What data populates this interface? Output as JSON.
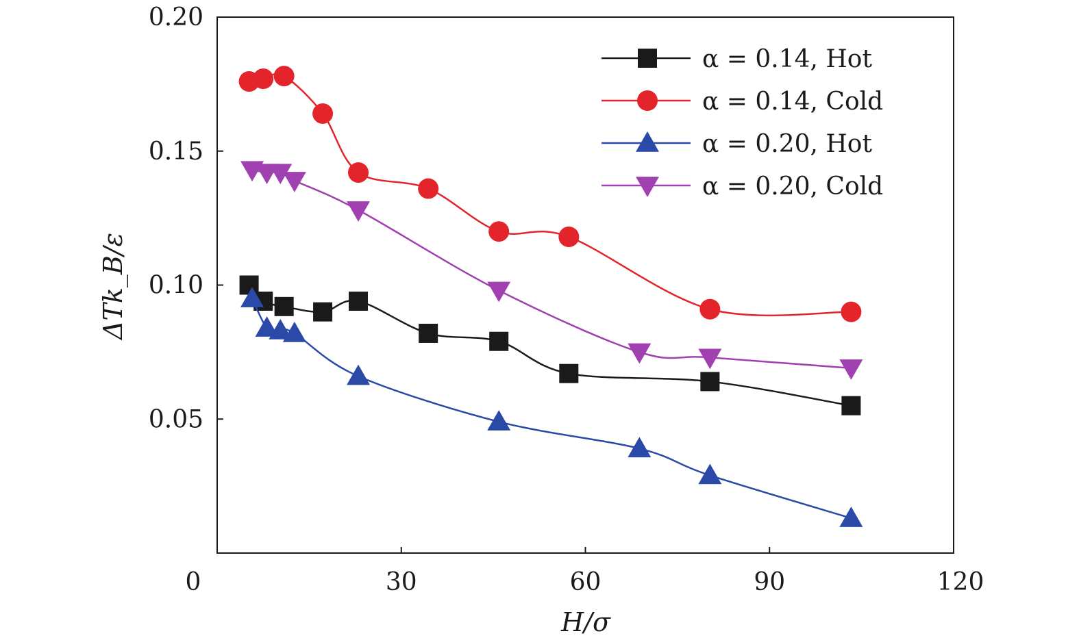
{
  "chart_data": {
    "type": "line",
    "xlabel": "H/σ",
    "ylabel": "ΔTk_B/ε",
    "xlim": [
      0,
      120
    ],
    "ylim": [
      0,
      0.2
    ],
    "x_ticks": [
      0,
      30,
      60,
      90,
      120
    ],
    "x_tick_labels": [
      "0",
      "30",
      "60",
      "90",
      "120"
    ],
    "y_ticks": [
      0.05,
      0.1,
      0.15,
      0.2
    ],
    "y_tick_labels": [
      "0.05",
      "0.10",
      "0.15",
      "0.20"
    ],
    "grid": false,
    "legend_position": "top-right",
    "series": [
      {
        "name": "α = 0.14, Hot",
        "color": "#1a1a1a",
        "marker": "square",
        "x": [
          5.2,
          7.5,
          10.9,
          17.2,
          23.0,
          34.4,
          45.9,
          57.3,
          80.3,
          103.3
        ],
        "y": [
          0.1,
          0.094,
          0.092,
          0.09,
          0.094,
          0.082,
          0.079,
          0.067,
          0.064,
          0.055
        ]
      },
      {
        "name": "α = 0.14, Cold",
        "color": "#e3242b",
        "marker": "circle",
        "x": [
          5.2,
          7.5,
          10.9,
          17.2,
          23.0,
          34.4,
          45.9,
          57.3,
          80.3,
          103.3
        ],
        "y": [
          0.176,
          0.177,
          0.178,
          0.164,
          0.142,
          0.136,
          0.12,
          0.118,
          0.091,
          0.09
        ]
      },
      {
        "name": "α = 0.20, Hot",
        "color": "#2b4aa8",
        "marker": "triangle-up",
        "x": [
          5.7,
          8.1,
          10.3,
          12.6,
          23.0,
          45.9,
          68.8,
          80.3,
          103.3
        ],
        "y": [
          0.095,
          0.084,
          0.083,
          0.082,
          0.066,
          0.049,
          0.039,
          0.029,
          0.013
        ]
      },
      {
        "name": "α = 0.20, Cold",
        "color": "#a140b0",
        "marker": "triangle-down",
        "x": [
          5.7,
          8.1,
          10.3,
          12.6,
          23.0,
          45.9,
          68.8,
          80.3,
          103.3
        ],
        "y": [
          0.143,
          0.142,
          0.142,
          0.139,
          0.128,
          0.098,
          0.075,
          0.073,
          0.069
        ]
      }
    ]
  }
}
